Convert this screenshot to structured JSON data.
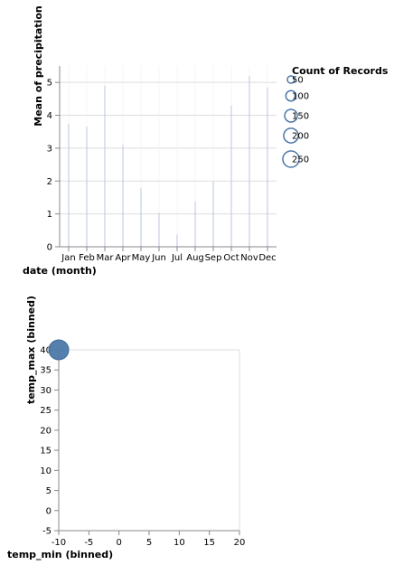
{
  "chart_data": [
    {
      "type": "bar",
      "xlabel": "date (month)",
      "ylabel": "Mean of precipitation",
      "categories": [
        "Jan",
        "Feb",
        "Mar",
        "Apr",
        "May",
        "Jun",
        "Jul",
        "Aug",
        "Sep",
        "Oct",
        "Nov",
        "Dec"
      ],
      "values": [
        3.75,
        3.65,
        4.9,
        3.1,
        1.78,
        1.03,
        0.38,
        1.38,
        1.99,
        4.3,
        5.2,
        4.85
      ],
      "ylim": [
        0,
        5.5
      ],
      "yticks": [
        0,
        1,
        2,
        3,
        4,
        5
      ],
      "grid": true
    },
    {
      "type": "scatter",
      "xlabel": "temp_min (binned)",
      "ylabel": "temp_max (binned)",
      "xlim": [
        -10,
        20
      ],
      "ylim": [
        -5,
        40
      ],
      "xticks": [
        -10,
        -5,
        0,
        5,
        10,
        15,
        20
      ],
      "yticks": [
        -5,
        0,
        5,
        10,
        15,
        20,
        25,
        30,
        35,
        40
      ],
      "points": [
        {
          "x": -10,
          "y": 40,
          "count": 250
        }
      ],
      "color": "#4c78a8",
      "legend": {
        "title": "Count of Records",
        "placement": "right",
        "values": [
          50,
          100,
          150,
          200,
          250
        ]
      }
    }
  ]
}
